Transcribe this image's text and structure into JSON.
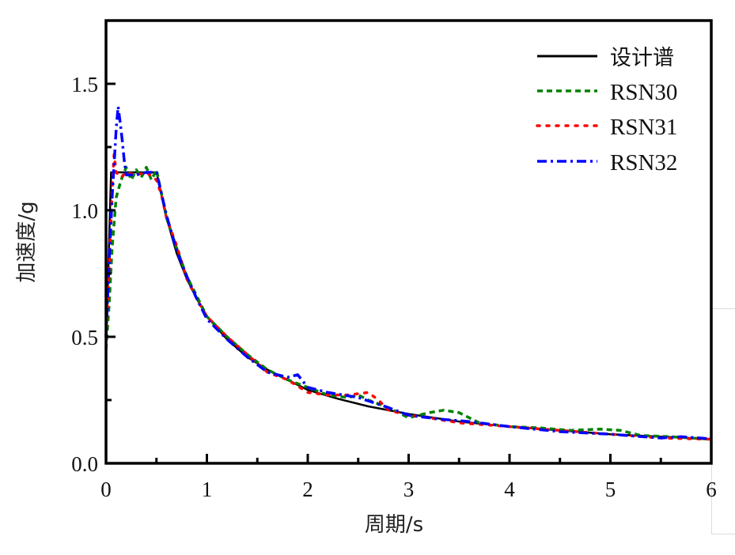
{
  "chart_data": {
    "type": "line",
    "title": "",
    "xlabel": "周期/s",
    "ylabel": "加速度/g",
    "xlim": [
      0,
      6
    ],
    "ylim": [
      0,
      1.75
    ],
    "xticks": [
      0,
      1,
      2,
      3,
      4,
      5,
      6
    ],
    "xtick_labels": [
      "0",
      "1",
      "2",
      "3",
      "4",
      "5",
      "6"
    ],
    "yticks": [
      0.0,
      0.5,
      1.0,
      1.5
    ],
    "ytick_labels": [
      "0.0",
      "0.5",
      "1.0",
      "1.5"
    ],
    "x_minor_ticks": [
      0.5,
      1.5,
      2.5,
      3.5,
      4.5,
      5.5
    ],
    "y_minor_ticks": [
      0.25,
      0.75,
      1.25
    ],
    "grid": false,
    "legend_position": "upper right",
    "series": [
      {
        "name": "设计谱",
        "color": "#000000",
        "style": "solid",
        "x": [
          0,
          0.05,
          0.5,
          0.6,
          0.7,
          0.8,
          0.9,
          1.0,
          1.2,
          1.4,
          1.6,
          1.8,
          2.0,
          2.3,
          2.6,
          3.0,
          3.5,
          4.0,
          4.5,
          5.0,
          5.5,
          6.0
        ],
        "y": [
          0.45,
          1.15,
          1.15,
          0.97,
          0.83,
          0.73,
          0.65,
          0.58,
          0.49,
          0.42,
          0.37,
          0.33,
          0.29,
          0.255,
          0.225,
          0.195,
          0.165,
          0.145,
          0.13,
          0.115,
          0.105,
          0.096
        ]
      },
      {
        "name": "RSN30",
        "color": "#008000",
        "style": "dashed",
        "x": [
          0,
          0.03,
          0.06,
          0.1,
          0.15,
          0.2,
          0.25,
          0.3,
          0.35,
          0.4,
          0.45,
          0.5,
          0.6,
          0.7,
          0.8,
          0.9,
          1.0,
          1.2,
          1.4,
          1.6,
          1.8,
          2.0,
          2.2,
          2.4,
          2.5,
          2.6,
          2.8,
          3.0,
          3.2,
          3.35,
          3.5,
          3.7,
          4.0,
          4.3,
          4.6,
          4.9,
          5.1,
          5.3,
          5.6,
          6.0
        ],
        "y": [
          0.45,
          0.62,
          0.85,
          1.05,
          1.12,
          1.17,
          1.12,
          1.16,
          1.13,
          1.17,
          1.12,
          1.16,
          0.97,
          0.85,
          0.74,
          0.66,
          0.58,
          0.5,
          0.43,
          0.37,
          0.33,
          0.3,
          0.27,
          0.26,
          0.27,
          0.25,
          0.22,
          0.18,
          0.2,
          0.21,
          0.2,
          0.16,
          0.145,
          0.14,
          0.13,
          0.135,
          0.13,
          0.11,
          0.105,
          0.095
        ]
      },
      {
        "name": "RSN31",
        "color": "#ff0000",
        "style": "dotted",
        "x": [
          0,
          0.03,
          0.06,
          0.08,
          0.1,
          0.15,
          0.2,
          0.3,
          0.4,
          0.5,
          0.55,
          0.6,
          0.7,
          0.8,
          0.9,
          1.0,
          1.2,
          1.4,
          1.6,
          1.8,
          2.0,
          2.2,
          2.4,
          2.6,
          2.7,
          2.8,
          3.0,
          3.2,
          3.5,
          4.0,
          4.5,
          5.0,
          5.5,
          6.0
        ],
        "y": [
          0.5,
          0.75,
          1.08,
          1.22,
          1.15,
          1.13,
          1.15,
          1.14,
          1.15,
          1.12,
          1.06,
          0.97,
          0.86,
          0.73,
          0.65,
          0.58,
          0.5,
          0.43,
          0.36,
          0.33,
          0.28,
          0.27,
          0.27,
          0.28,
          0.25,
          0.21,
          0.19,
          0.18,
          0.16,
          0.145,
          0.13,
          0.115,
          0.1,
          0.095
        ]
      },
      {
        "name": "RSN32",
        "color": "#0000ff",
        "style": "dashdot",
        "x": [
          0,
          0.03,
          0.06,
          0.08,
          0.1,
          0.12,
          0.14,
          0.16,
          0.18,
          0.2,
          0.3,
          0.4,
          0.5,
          0.6,
          0.7,
          0.8,
          0.9,
          1.0,
          1.2,
          1.4,
          1.6,
          1.8,
          1.9,
          2.0,
          2.2,
          2.5,
          2.8,
          3.0,
          3.3,
          3.6,
          4.0,
          4.5,
          5.0,
          5.5,
          5.7,
          6.0
        ],
        "y": [
          0.5,
          0.78,
          1.05,
          1.18,
          1.32,
          1.41,
          1.35,
          1.28,
          1.2,
          1.14,
          1.14,
          1.15,
          1.15,
          0.98,
          0.84,
          0.74,
          0.65,
          0.57,
          0.49,
          0.42,
          0.36,
          0.34,
          0.35,
          0.3,
          0.28,
          0.26,
          0.22,
          0.19,
          0.175,
          0.165,
          0.145,
          0.125,
          0.115,
          0.1,
          0.105,
          0.097
        ]
      }
    ]
  },
  "axes": {
    "xlabel": "周期/s",
    "ylabel": "加速度/g"
  },
  "legend": {
    "items": [
      {
        "label": "设计谱",
        "color": "#000000",
        "style": "solid"
      },
      {
        "label": "RSN30",
        "color": "#008000",
        "style": "dashed"
      },
      {
        "label": "RSN31",
        "color": "#ff0000",
        "style": "dotted"
      },
      {
        "label": "RSN32",
        "color": "#0000ff",
        "style": "dashdot"
      }
    ]
  }
}
